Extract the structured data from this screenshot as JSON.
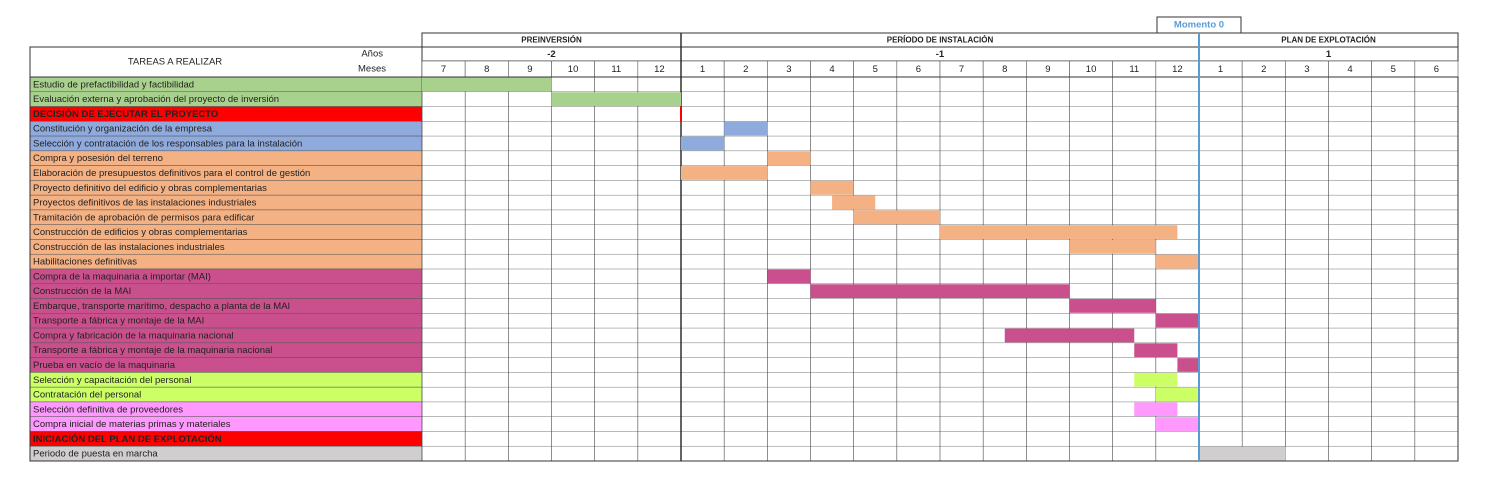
{
  "chart_data": {
    "type": "gantt",
    "header": {
      "tasks": "TAREAS  A REALIZAR",
      "years": "Años",
      "months": "Meses",
      "milestone": "Momento 0"
    },
    "phases": [
      {
        "name": "PREINVERSIÓN",
        "year": -2,
        "months": [
          7,
          8,
          9,
          10,
          11,
          12
        ]
      },
      {
        "name": "PERÍODO DE INSTALACIÓN",
        "year": -1,
        "months": [
          1,
          2,
          3,
          4,
          5,
          6,
          7,
          8,
          9,
          10,
          11,
          12
        ]
      },
      {
        "name": "PLAN DE EXPLOTACIÓN",
        "year": 1,
        "months": [
          1,
          2,
          3,
          4,
          5,
          6
        ]
      }
    ],
    "tasks": [
      {
        "name": "Estudio de prefactibilidad y factibilidad",
        "color": "#a9d18e",
        "start": 0,
        "end": 3
      },
      {
        "name": "Evaluación externa y aprobación del  proyecto de inversión",
        "color": "#a9d18e",
        "start": 3,
        "end": 6
      },
      {
        "name": "DECISIÓN DE EJECUTAR EL PROYECTO",
        "color": "#ff0000",
        "start": 6,
        "end": 6
      },
      {
        "name": "Constitución y organización de la empresa",
        "color": "#8faadc",
        "start": 7,
        "end": 8
      },
      {
        "name": "Selección y contratación de los responsables para la instalación",
        "color": "#8faadc",
        "start": 6,
        "end": 7
      },
      {
        "name": "Compra y posesión del terreno",
        "color": "#f4b183",
        "start": 8,
        "end": 9
      },
      {
        "name": "Elaboración de presupuestos definitivos para el control de gestión",
        "color": "#f4b183",
        "start": 6,
        "end": 8
      },
      {
        "name": "Proyecto definitivo del edificio y obras complementarias",
        "color": "#f4b183",
        "start": 9,
        "end": 10
      },
      {
        "name": "Proyectos definitivos de las instalaciones industriales",
        "color": "#f4b183",
        "start": 9.5,
        "end": 10.5
      },
      {
        "name": "Tramitación de aprobación de permisos para edificar",
        "color": "#f4b183",
        "start": 10,
        "end": 12
      },
      {
        "name": "Construcción de edificios y obras complementarias",
        "color": "#f4b183",
        "start": 12,
        "end": 17.5
      },
      {
        "name": "Construcción de las instalaciones industriales",
        "color": "#f4b183",
        "start": 15,
        "end": 17
      },
      {
        "name": "Habilitaciones definitivas",
        "color": "#f4b183",
        "start": 17,
        "end": 18
      },
      {
        "name": "Compra de la maquinaria a importar (MAI)",
        "color": "#c9508c",
        "start": 8,
        "end": 9
      },
      {
        "name": "Construcción de la MAI",
        "color": "#c9508c",
        "start": 9,
        "end": 15
      },
      {
        "name": "Embarque, transporte marítimo, despacho a planta de la MAI",
        "color": "#c9508c",
        "start": 15,
        "end": 17
      },
      {
        "name": "Transporte a fábrica y montaje de la MAI",
        "color": "#c9508c",
        "start": 17,
        "end": 18
      },
      {
        "name": "Compra y fabricación de la maquinaria nacional",
        "color": "#c9508c",
        "start": 13.5,
        "end": 16.5
      },
      {
        "name": "Transporte a fábrica y montaje de la maquinaria nacional",
        "color": "#c9508c",
        "start": 16.5,
        "end": 17.5
      },
      {
        "name": "Prueba en vacío de la maquinaria",
        "color": "#c9508c",
        "start": 17.5,
        "end": 18
      },
      {
        "name": "Selección y capacitación del personal",
        "color": "#ccff66",
        "start": 16.5,
        "end": 17.5
      },
      {
        "name": "Contratación del personal",
        "color": "#ccff66",
        "start": 17,
        "end": 18
      },
      {
        "name": "Selección definitiva de proveedores",
        "color": "#ff99ff",
        "start": 16.5,
        "end": 17.5
      },
      {
        "name": "Compra inicial de materias primas y materiales",
        "color": "#ff99ff",
        "start": 17,
        "end": 18
      },
      {
        "name": "INICIACIÓN DEL PLAN DE EXPLOTACIÓN",
        "color": "#ff0000",
        "start": 18,
        "end": 18
      },
      {
        "name": "Periodo de puesta en marcha",
        "color": "#d0cece",
        "start": 18,
        "end": 20
      }
    ]
  }
}
